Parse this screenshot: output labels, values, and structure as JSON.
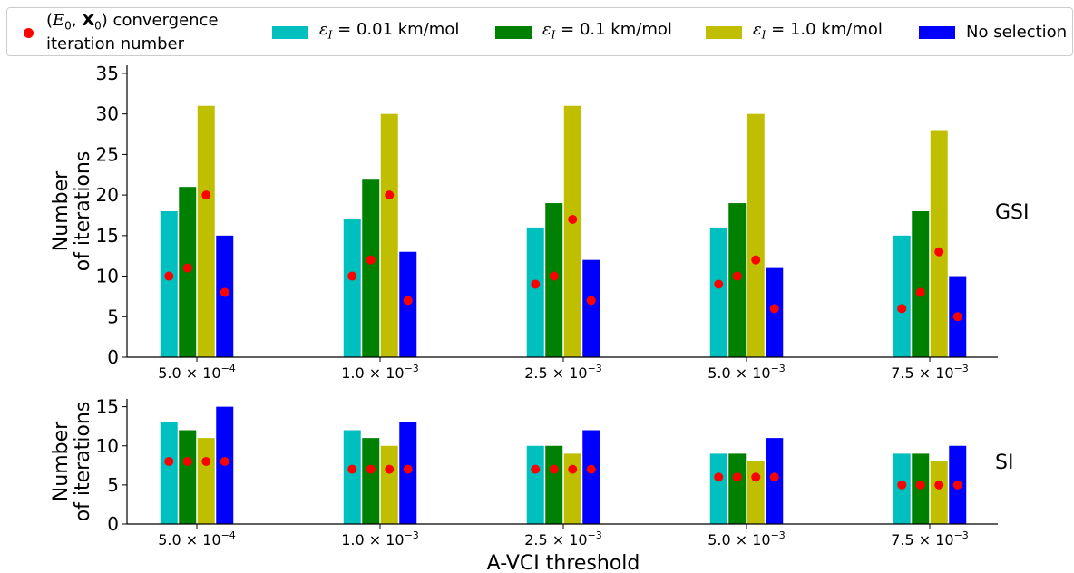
{
  "legend": {
    "dot_label_line1_suffix": ") convergence",
    "dot_label_line2": "iteration number",
    "eps_labels": [
      "= 0.01 km/mol",
      "= 0.1 km/mol",
      "= 1.0 km/mol"
    ],
    "no_selection": "No selection"
  },
  "colors": {
    "eps_001": "#00bfbf",
    "eps_01": "#008000",
    "eps_10": "#bfbf00",
    "no_selection": "#0000ff",
    "convergence_dot": "#ff0000"
  },
  "chart_data": [
    {
      "type": "bar",
      "panel_label": "GSI",
      "ylabel": [
        "Number",
        "of iterations"
      ],
      "ylim": [
        0,
        36
      ],
      "yticks": [
        0,
        5,
        10,
        15,
        20,
        25,
        30,
        35
      ],
      "categories": [
        "5.0×10⁻⁴",
        "1.0×10⁻³",
        "2.5×10⁻³",
        "5.0×10⁻³",
        "7.5×10⁻³"
      ],
      "category_mantissa": [
        "5.0",
        "1.0",
        "2.5",
        "5.0",
        "7.5"
      ],
      "category_exponent": [
        "−4",
        "−3",
        "−3",
        "−3",
        "−3"
      ],
      "series": [
        {
          "name": "ε_I = 0.01 km/mol",
          "color": "#00bfbf",
          "values": [
            18,
            17,
            16,
            16,
            15
          ],
          "dots": [
            10,
            10,
            9,
            9,
            6
          ]
        },
        {
          "name": "ε_I = 0.1 km/mol",
          "color": "#008000",
          "values": [
            21,
            22,
            19,
            19,
            18
          ],
          "dots": [
            11,
            12,
            10,
            10,
            8
          ]
        },
        {
          "name": "ε_I = 1.0 km/mol",
          "color": "#bfbf00",
          "values": [
            31,
            30,
            31,
            30,
            28
          ],
          "dots": [
            20,
            20,
            17,
            12,
            13
          ]
        },
        {
          "name": "No selection",
          "color": "#0000ff",
          "values": [
            15,
            13,
            12,
            11,
            10
          ],
          "dots": [
            8,
            7,
            7,
            6,
            5
          ]
        }
      ]
    },
    {
      "type": "bar",
      "panel_label": "SI",
      "xlabel": "A-VCI threshold",
      "ylabel": [
        "Number",
        "of iterations"
      ],
      "ylim": [
        0,
        16
      ],
      "yticks": [
        0,
        5,
        10,
        15
      ],
      "categories": [
        "5.0×10⁻⁴",
        "1.0×10⁻³",
        "2.5×10⁻³",
        "5.0×10⁻³",
        "7.5×10⁻³"
      ],
      "category_mantissa": [
        "5.0",
        "1.0",
        "2.5",
        "5.0",
        "7.5"
      ],
      "category_exponent": [
        "−4",
        "−3",
        "−3",
        "−3",
        "−3"
      ],
      "series": [
        {
          "name": "ε_I = 0.01 km/mol",
          "color": "#00bfbf",
          "values": [
            13,
            12,
            10,
            9,
            9
          ],
          "dots": [
            8,
            7,
            7,
            6,
            5
          ]
        },
        {
          "name": "ε_I = 0.1 km/mol",
          "color": "#008000",
          "values": [
            12,
            11,
            10,
            9,
            9
          ],
          "dots": [
            8,
            7,
            7,
            6,
            5
          ]
        },
        {
          "name": "ε_I = 1.0 km/mol",
          "color": "#bfbf00",
          "values": [
            11,
            10,
            9,
            8,
            8
          ],
          "dots": [
            8,
            7,
            7,
            6,
            5
          ]
        },
        {
          "name": "No selection",
          "color": "#0000ff",
          "values": [
            15,
            13,
            12,
            11,
            10
          ],
          "dots": [
            8,
            7,
            7,
            6,
            5
          ]
        }
      ]
    }
  ]
}
